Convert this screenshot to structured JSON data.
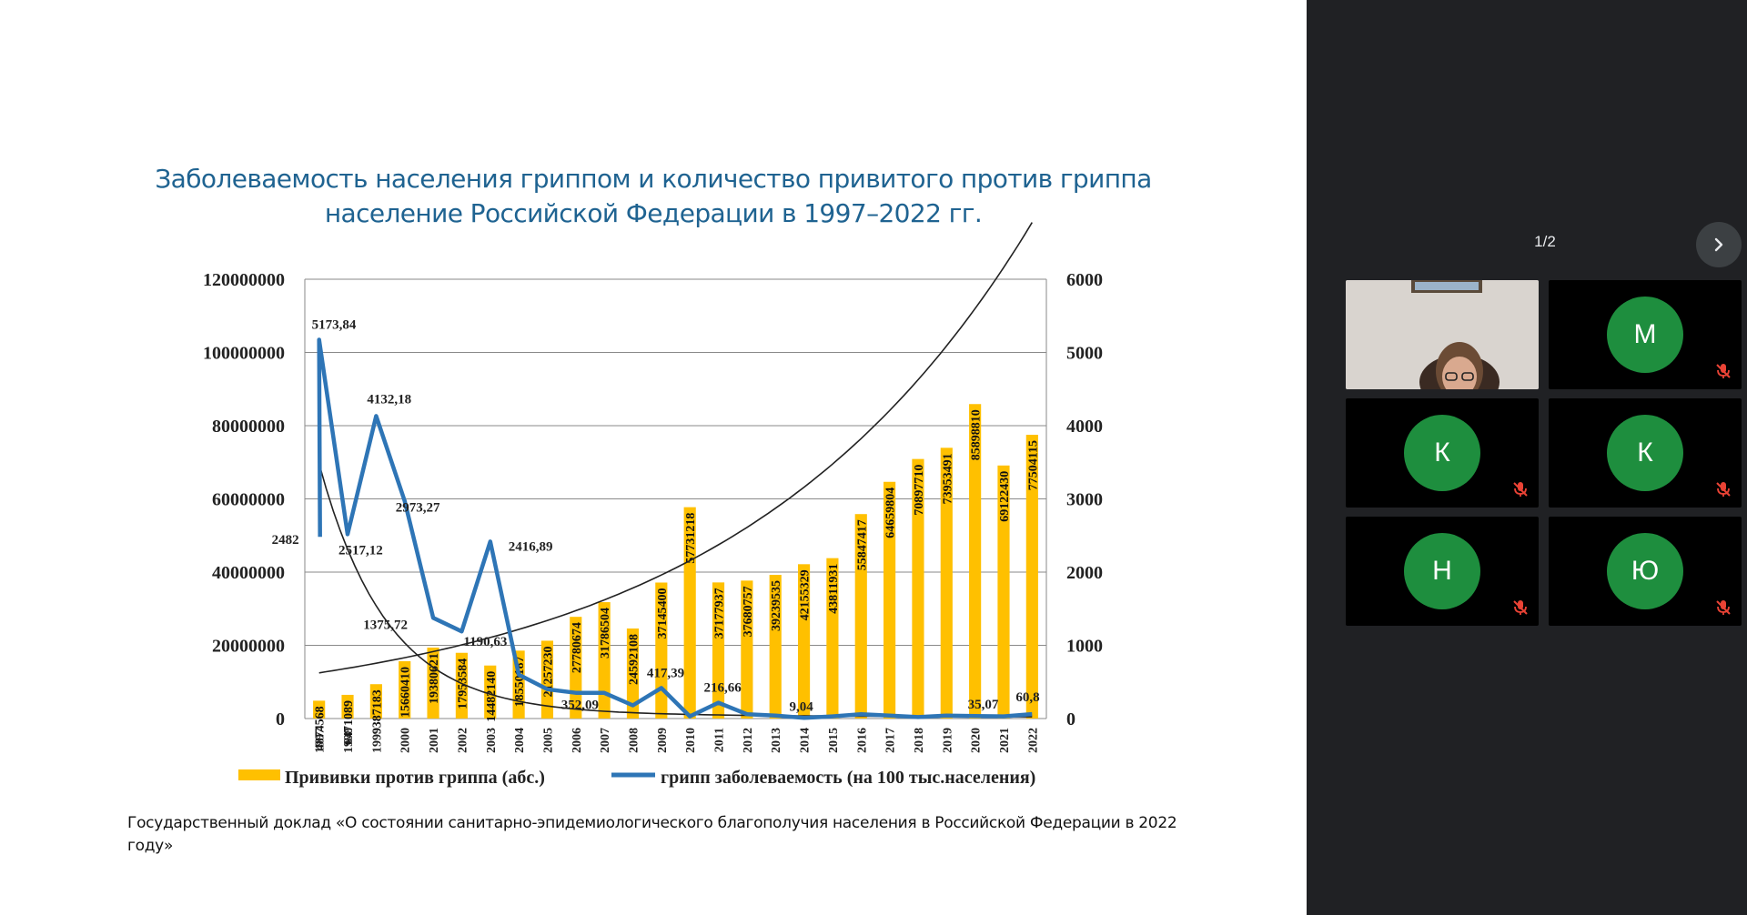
{
  "slide": {
    "title_line1": "Заболеваемость населения гриппом и количество привитого против гриппа",
    "title_line2": "население Российской Федерации в 1997–2022 гг.",
    "source_line1": "Государственный доклад «О состоянии санитарно-эпидемиологического благополучия населения в Российской Федерации в 2022",
    "source_line2": "году»"
  },
  "chart_data": {
    "type": "bar",
    "categories": [
      "1997",
      "1998",
      "1999",
      "2000",
      "2001",
      "2002",
      "2003",
      "2004",
      "2005",
      "2006",
      "2007",
      "2008",
      "2009",
      "2010",
      "2011",
      "2012",
      "2013",
      "2014",
      "2015",
      "2016",
      "2017",
      "2018",
      "2019",
      "2020",
      "2021",
      "2022"
    ],
    "left_axis": {
      "range": [
        0,
        120000000
      ],
      "ticks": [
        "0",
        "20000000",
        "40000000",
        "60000000",
        "80000000",
        "100000000",
        "120000000"
      ]
    },
    "right_axis": {
      "range": [
        0,
        6000
      ],
      "ticks": [
        "0",
        "1000",
        "2000",
        "3000",
        "4000",
        "5000",
        "6000"
      ]
    },
    "grid": true,
    "legend_position": "bottom",
    "series": [
      {
        "name": "Прививки против гриппа (абс.)",
        "type": "bar",
        "axis": "left",
        "color": "#ffc000",
        "values": [
          4874568,
          6471089,
          9387183,
          15660410,
          19380621,
          17953584,
          14482140,
          18550187,
          21257230,
          27780674,
          31786504,
          24592108,
          37145400,
          57731218,
          37177937,
          37680757,
          39239535,
          42155329,
          43811931,
          55847417,
          64659804,
          70897710,
          73953491,
          85898810,
          69122430,
          77504115
        ],
        "labels": [
          "4874568",
          "6471089",
          "9387183",
          "15660410",
          "19380621",
          "17953584",
          "14482140",
          "18550187",
          "21257230",
          "27780674",
          "31786504",
          "24592108",
          "37145400",
          "57731218",
          "37177937",
          "37680757",
          "39239535",
          "42155329",
          "43811931",
          "55847417",
          "64659804",
          "70897710",
          "73953491",
          "85898810",
          "69122430",
          "77504115"
        ]
      },
      {
        "name": "грипп заболеваемость (на 100 тыс.населения)",
        "type": "line",
        "axis": "right",
        "color": "#2e75b6",
        "values": [
          2482,
          5173.84,
          2517.12,
          4132.18,
          2973.27,
          1375.72,
          1190.63,
          2416.89,
          600,
          400,
          352.09,
          350,
          180,
          417.39,
          30,
          216.66,
          60,
          40,
          9.04,
          30,
          60,
          40,
          20,
          40,
          35.07,
          30,
          60.8
        ],
        "x": [
          "1997",
          "1997",
          "1998",
          "1999",
          "2000",
          "2001",
          "2002",
          "2003",
          "2004",
          "2005",
          "2006",
          "2007",
          "2008",
          "2009",
          "2010",
          "2011",
          "2012",
          "2013",
          "2014",
          "2015",
          "2016",
          "2017",
          "2018",
          "2019",
          "2020",
          "2021",
          "2022"
        ],
        "labels": [
          {
            "x": "1997",
            "value": 2482,
            "text": "2482"
          },
          {
            "x": "1997",
            "value": 5173.84,
            "text": "5173,84"
          },
          {
            "x": "1998",
            "value": 2517.12,
            "text": "2517,12"
          },
          {
            "x": "1999",
            "value": 4132.18,
            "text": "4132,18"
          },
          {
            "x": "2000",
            "value": 2973.27,
            "text": "2973,27"
          },
          {
            "x": "2001",
            "value": 1375.72,
            "text": "1375,72"
          },
          {
            "x": "2002",
            "value": 1190.63,
            "text": "1190,63"
          },
          {
            "x": "2003",
            "value": 2416.89,
            "text": "2416,89"
          },
          {
            "x": "2006",
            "value": 352.09,
            "text": "352,09"
          },
          {
            "x": "2009",
            "value": 417.39,
            "text": "417,39"
          },
          {
            "x": "2011",
            "value": 216.66,
            "text": "216,66"
          },
          {
            "x": "2014",
            "value": 9.04,
            "text": "9,04"
          },
          {
            "x": "2020",
            "value": 35.07,
            "text": "35,07"
          },
          {
            "x": "2022",
            "value": 60.8,
            "text": "60,8"
          }
        ]
      }
    ],
    "trendlines": [
      {
        "series": "Прививки против гриппа (абс.)",
        "kind": "exponential",
        "color": "#222222"
      },
      {
        "series": "грипп заболеваемость (на 100 тыс.населения)",
        "kind": "power",
        "color": "#222222"
      }
    ]
  },
  "meeting": {
    "pager": "1/2",
    "next_icon": "chevron-right-icon",
    "participants": [
      {
        "initial": "",
        "has_video": true,
        "muted": false
      },
      {
        "initial": "М",
        "has_video": false,
        "muted": true,
        "color": "#1e8e3e"
      },
      {
        "initial": "К",
        "has_video": false,
        "muted": true,
        "color": "#1e8e3e"
      },
      {
        "initial": "К",
        "has_video": false,
        "muted": true,
        "color": "#1e8e3e"
      },
      {
        "initial": "Н",
        "has_video": false,
        "muted": true,
        "color": "#1e8e3e"
      },
      {
        "initial": "Ю",
        "has_video": false,
        "muted": true,
        "color": "#1e8e3e"
      }
    ]
  }
}
